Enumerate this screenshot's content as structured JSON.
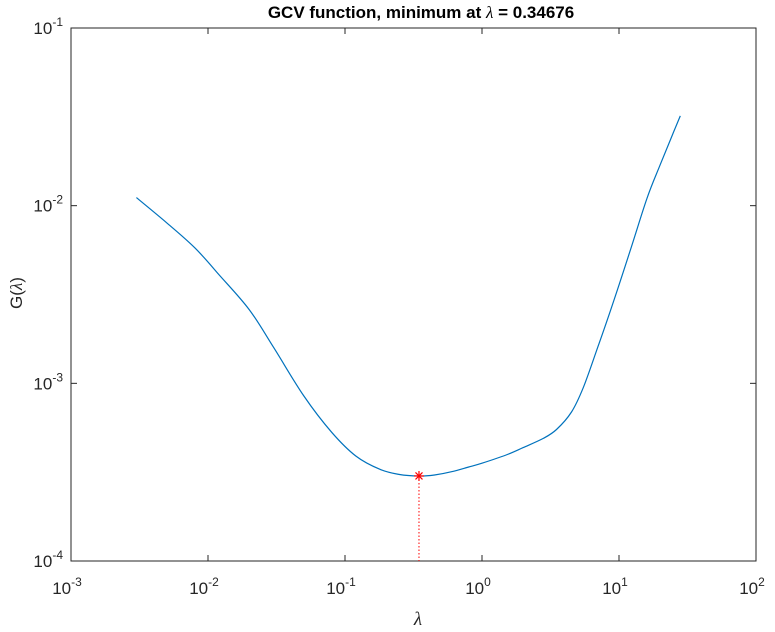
{
  "chart_data": {
    "type": "line",
    "title_prefix": "GCV function, minimum at ",
    "title_symbol": "λ",
    "title_suffix": " = 0.34676",
    "xlabel": "λ",
    "ylabel_prefix": "G(",
    "ylabel_symbol": "λ",
    "ylabel_suffix": ")",
    "xscale": "log",
    "yscale": "log",
    "xlim": [
      0.001,
      100
    ],
    "ylim": [
      0.0001,
      0.1
    ],
    "grid": false,
    "x_ticks": [
      {
        "base": "10",
        "exp": "-3",
        "value": 0.001
      },
      {
        "base": "10",
        "exp": "-2",
        "value": 0.01
      },
      {
        "base": "10",
        "exp": "-1",
        "value": 0.1
      },
      {
        "base": "10",
        "exp": "0",
        "value": 1
      },
      {
        "base": "10",
        "exp": "1",
        "value": 10
      },
      {
        "base": "10",
        "exp": "2",
        "value": 100
      }
    ],
    "y_ticks": [
      {
        "base": "10",
        "exp": "-4",
        "value": 0.0001
      },
      {
        "base": "10",
        "exp": "-3",
        "value": 0.001
      },
      {
        "base": "10",
        "exp": "-2",
        "value": 0.01
      },
      {
        "base": "10",
        "exp": "-1",
        "value": 0.1
      }
    ],
    "series": [
      {
        "color": "#0072BD",
        "x": [
          0.003,
          0.005,
          0.008,
          0.012,
          0.02,
          0.03,
          0.05,
          0.08,
          0.12,
          0.18,
          0.25,
          0.34676,
          0.45,
          0.6,
          0.8,
          1.0,
          1.5,
          2.0,
          2.8,
          3.5,
          4.5,
          5.5,
          7.0,
          9.0,
          12.0,
          16.0,
          20.0,
          24.0,
          28.0
        ],
        "y": [
          0.0111,
          0.008,
          0.0058,
          0.0041,
          0.0026,
          0.0016,
          0.00085,
          0.00053,
          0.00039,
          0.000328,
          0.000307,
          0.000301,
          0.000305,
          0.000318,
          0.000338,
          0.000355,
          0.000395,
          0.000435,
          0.00049,
          0.00055,
          0.00069,
          0.00095,
          0.0016,
          0.0028,
          0.0055,
          0.011,
          0.017,
          0.024,
          0.032
        ]
      }
    ],
    "minimum": {
      "x": 0.34676,
      "y": 0.000301,
      "color": "#FF0000",
      "marker": "asterisk"
    }
  }
}
